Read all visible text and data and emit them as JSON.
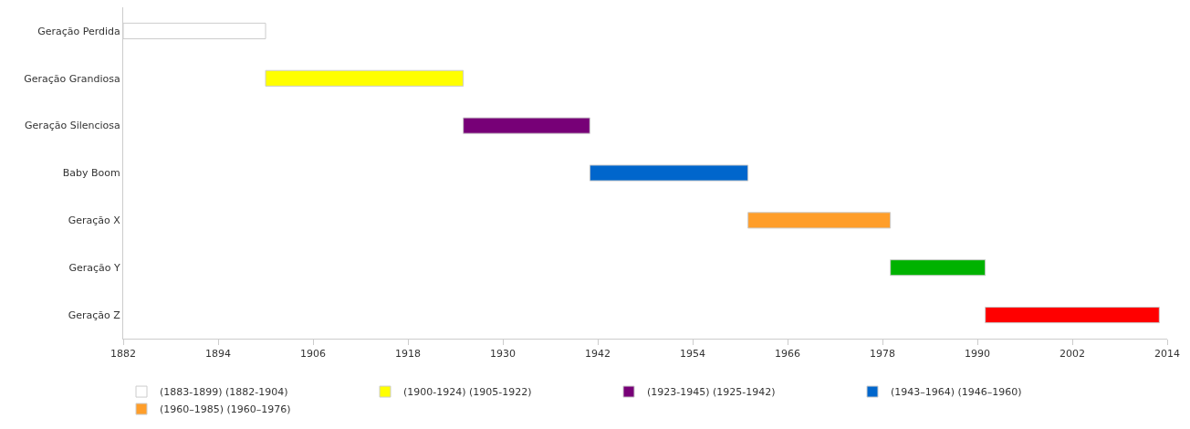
{
  "chart_data": {
    "type": "bar",
    "orientation": "horizontal",
    "categories": [
      "Geração Perdida",
      "Geração Grandiosa",
      "Geração Silenciosa",
      "Baby Boom",
      "Geração X",
      "Geração Y",
      "Geração Z"
    ],
    "series": [
      {
        "name": "(1883-1899) (1882-1904)",
        "color": "#ffffff",
        "values": [
          18,
          null,
          null,
          null,
          null,
          null,
          null
        ],
        "base": [
          1882,
          null,
          null,
          null,
          null,
          null,
          null
        ]
      },
      {
        "name": "(1900-1924) (1905-1922)",
        "color": "#ffff00",
        "values": [
          null,
          25,
          null,
          null,
          null,
          null,
          null
        ],
        "base": [
          null,
          1900,
          null,
          null,
          null,
          null,
          null
        ]
      },
      {
        "name": "(1923-1945) (1925-1942)",
        "color": "#770077",
        "values": [
          null,
          null,
          16,
          null,
          null,
          null,
          null
        ],
        "base": [
          null,
          null,
          1925,
          null,
          null,
          null,
          null
        ]
      },
      {
        "name": "(1943–1964) (1946–1960)",
        "color": "#0066cc",
        "values": [
          null,
          null,
          null,
          20,
          null,
          null,
          null
        ],
        "base": [
          null,
          null,
          null,
          1941,
          null,
          null,
          null
        ]
      },
      {
        "name": "(1960–1985) (1960–1976)",
        "color": "#ff9e2a",
        "values": [
          null,
          null,
          null,
          null,
          18,
          null,
          null
        ],
        "base": [
          null,
          null,
          null,
          null,
          1961,
          null,
          null
        ]
      },
      {
        "color": "#00b200",
        "values": [
          null,
          null,
          null,
          null,
          null,
          12,
          null
        ],
        "base": [
          null,
          null,
          null,
          null,
          null,
          1979,
          null
        ]
      },
      {
        "color": "#ff0000",
        "values": [
          null,
          null,
          null,
          null,
          null,
          null,
          22
        ],
        "base": [
          null,
          null,
          null,
          null,
          null,
          null,
          1991
        ]
      }
    ],
    "xlim": [
      1882,
      2014
    ],
    "xticks": [
      1882,
      1894,
      1906,
      1918,
      1930,
      1942,
      1954,
      1966,
      1978,
      1990,
      2002,
      2014
    ],
    "legend": "bottom"
  }
}
